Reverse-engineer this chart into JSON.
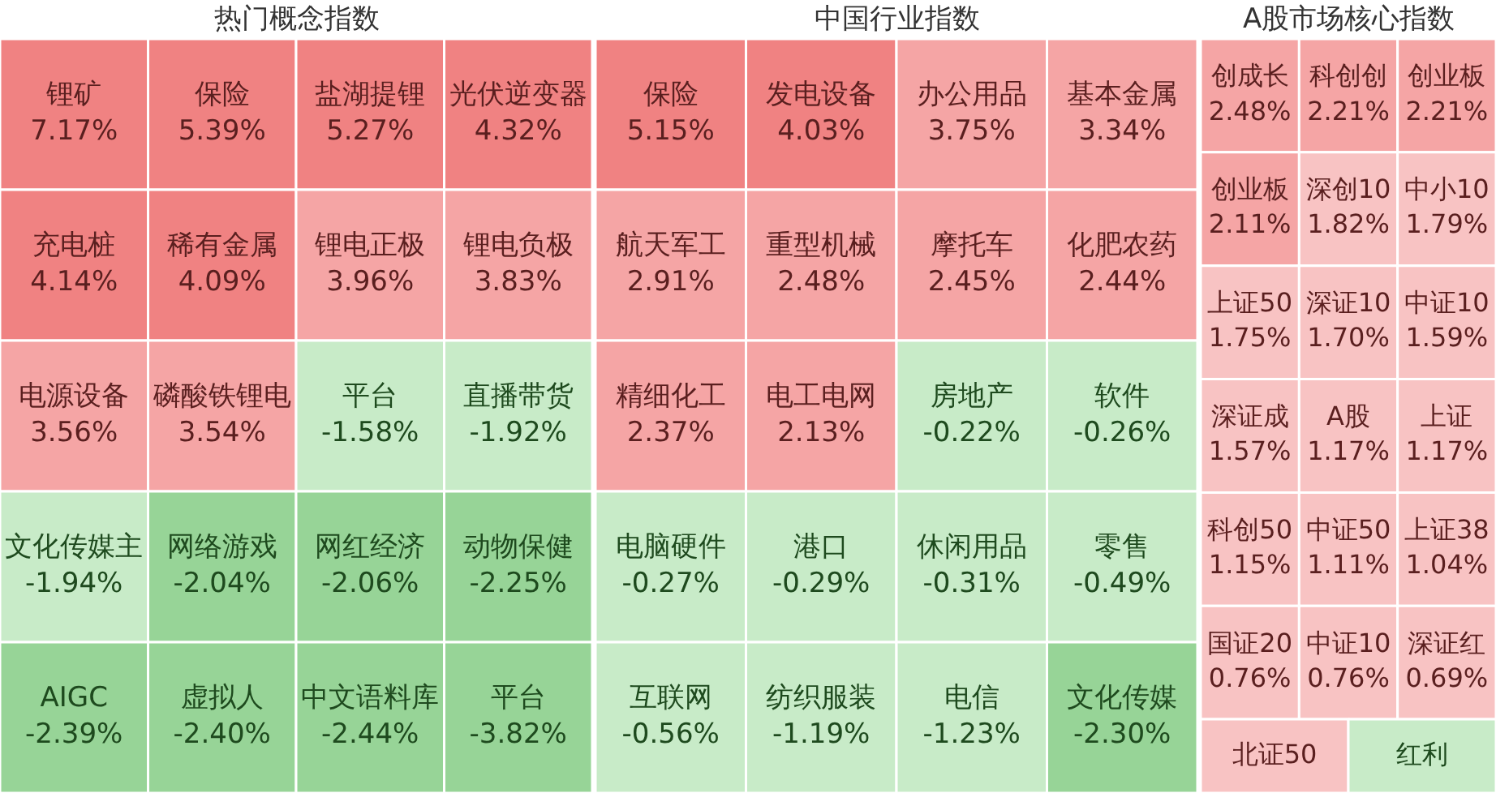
{
  "chart_data": [
    {
      "type": "other",
      "title": "热门概念指数",
      "categories": [
        "锂矿",
        "保险",
        "盐湖提锂",
        "光伏逆变器",
        "充电桩",
        "稀有金属",
        "锂电正极",
        "锂电负极",
        "电源设备",
        "磷酸铁锂电",
        "平台",
        "直播带货",
        "文化传媒主",
        "网络游戏",
        "网红经济",
        "动物保健",
        "AIGC",
        "虚拟人",
        "中文语料库",
        "平台"
      ],
      "values": [
        7.17,
        5.39,
        5.27,
        4.32,
        4.14,
        4.09,
        3.96,
        3.83,
        3.56,
        3.54,
        -1.58,
        -1.92,
        -1.94,
        -2.04,
        -2.06,
        -2.25,
        -2.39,
        -2.4,
        -2.44,
        -3.82
      ],
      "value_labels": [
        "7.17%",
        "5.39%",
        "5.27%",
        "4.32%",
        "4.14%",
        "4.09%",
        "3.96%",
        "3.83%",
        "3.56%",
        "3.54%",
        "-1.58%",
        "-1.92%",
        "-1.94%",
        "-2.04%",
        "-2.06%",
        "-2.25%",
        "-2.39%",
        "-2.40%",
        "-2.44%",
        "-3.82%"
      ]
    },
    {
      "type": "other",
      "title": "中国行业指数",
      "categories": [
        "保险",
        "发电设备",
        "办公用品",
        "基本金属",
        "航天军工",
        "重型机械",
        "摩托车",
        "化肥农药",
        "精细化工",
        "电工电网",
        "房地产",
        "软件",
        "电脑硬件",
        "港口",
        "休闲用品",
        "零售",
        "互联网",
        "纺织服装",
        "电信",
        "文化传媒"
      ],
      "values": [
        5.15,
        4.03,
        3.75,
        3.34,
        2.91,
        2.48,
        2.45,
        2.44,
        2.37,
        2.13,
        -0.22,
        -0.26,
        -0.27,
        -0.29,
        -0.31,
        -0.49,
        -0.56,
        -1.19,
        -1.23,
        -2.3
      ],
      "value_labels": [
        "5.15%",
        "4.03%",
        "3.75%",
        "3.34%",
        "2.91%",
        "2.48%",
        "2.45%",
        "2.44%",
        "2.37%",
        "2.13%",
        "-0.22%",
        "-0.26%",
        "-0.27%",
        "-0.29%",
        "-0.31%",
        "-0.49%",
        "-0.56%",
        "-1.19%",
        "-1.23%",
        "-2.30%"
      ]
    },
    {
      "type": "other",
      "title": "A股市场核心指数",
      "categories": [
        "创成长",
        "科创创",
        "创业板",
        "创业板",
        "深创10",
        "中小10",
        "上证50",
        "深证10",
        "中证10",
        "深证成",
        "A股",
        "上证",
        "科创50",
        "中证50",
        "上证38",
        "国证20",
        "中证10",
        "深证红",
        "北证50",
        "红利"
      ],
      "values": [
        2.48,
        2.21,
        2.21,
        2.11,
        1.82,
        1.79,
        1.75,
        1.7,
        1.59,
        1.57,
        1.17,
        1.17,
        1.15,
        1.11,
        1.04,
        0.76,
        0.76,
        0.69,
        null,
        null
      ],
      "value_labels": [
        "2.48%",
        "2.21%",
        "2.21%",
        "2.11%",
        "1.82%",
        "1.79%",
        "1.75%",
        "1.70%",
        "1.59%",
        "1.57%",
        "1.17%",
        "1.17%",
        "1.15%",
        "1.11%",
        "1.04%",
        "0.76%",
        "0.76%",
        "0.69%",
        null,
        null
      ],
      "colors": [
        null,
        null,
        null,
        null,
        null,
        null,
        null,
        null,
        null,
        null,
        null,
        null,
        null,
        null,
        null,
        null,
        null,
        null,
        "#f8c3c3",
        "#c8ebc8"
      ]
    }
  ]
}
